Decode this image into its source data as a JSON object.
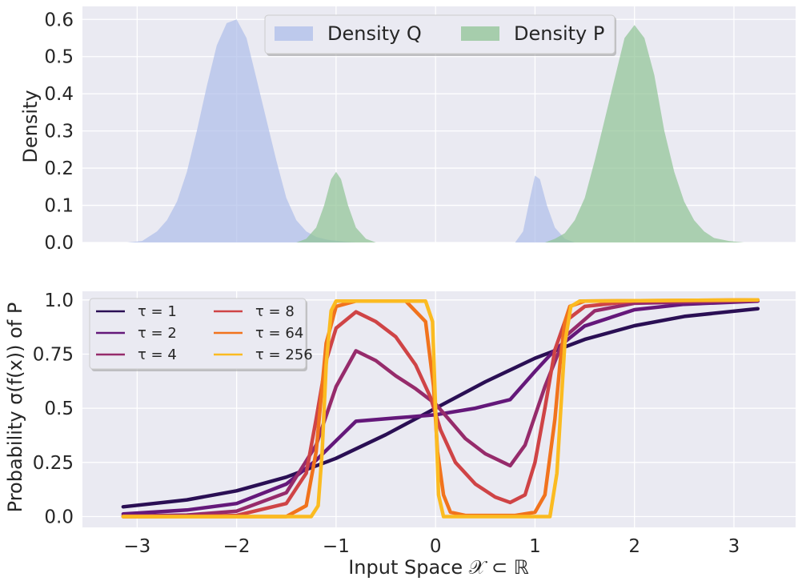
{
  "chart_data": [
    {
      "type": "area",
      "xlabel": "",
      "ylabel": "Density",
      "xlim": [
        -3.55,
        3.62
      ],
      "ylim": [
        0,
        0.635
      ],
      "yticks": [
        0.0,
        0.1,
        0.2,
        0.3,
        0.4,
        0.5,
        0.6
      ],
      "ytick_labels": [
        "0.0",
        "0.1",
        "0.2",
        "0.3",
        "0.4",
        "0.5",
        "0.6"
      ],
      "grid": true,
      "legend_position": "top-center",
      "series": [
        {
          "name": "Density Q",
          "color": "#aebde9",
          "x": [
            -3.1,
            -2.95,
            -2.8,
            -2.7,
            -2.6,
            -2.5,
            -2.4,
            -2.3,
            -2.2,
            -2.1,
            -2.0,
            -1.9,
            -1.8,
            -1.7,
            -1.6,
            -1.5,
            -1.4,
            -1.3,
            -1.2,
            -1.1,
            -1.05,
            -1.0,
            -0.9,
            -0.8,
            0.8,
            0.88,
            0.95,
            1.0,
            1.05,
            1.12,
            1.2,
            1.3,
            1.4
          ],
          "y": [
            0.0,
            0.004,
            0.03,
            0.06,
            0.11,
            0.19,
            0.3,
            0.42,
            0.53,
            0.59,
            0.6,
            0.55,
            0.44,
            0.33,
            0.22,
            0.12,
            0.06,
            0.03,
            0.015,
            0.008,
            0.006,
            0.005,
            0.002,
            0.0,
            0.0,
            0.03,
            0.12,
            0.18,
            0.17,
            0.1,
            0.04,
            0.01,
            0.0
          ]
        },
        {
          "name": "Density P",
          "color": "#8fc394",
          "x": [
            -1.4,
            -1.3,
            -1.2,
            -1.12,
            -1.05,
            -1.0,
            -0.95,
            -0.88,
            -0.8,
            -0.7,
            -0.6,
            1.1,
            1.2,
            1.3,
            1.4,
            1.5,
            1.6,
            1.7,
            1.8,
            1.9,
            2.0,
            2.1,
            2.2,
            2.3,
            2.4,
            2.5,
            2.6,
            2.7,
            2.8,
            2.95,
            3.1
          ],
          "y": [
            0.0,
            0.01,
            0.04,
            0.1,
            0.17,
            0.19,
            0.17,
            0.1,
            0.04,
            0.01,
            0.0,
            0.0,
            0.01,
            0.025,
            0.06,
            0.12,
            0.22,
            0.33,
            0.44,
            0.55,
            0.585,
            0.55,
            0.45,
            0.3,
            0.19,
            0.11,
            0.06,
            0.03,
            0.012,
            0.004,
            0.0
          ]
        }
      ]
    },
    {
      "type": "line",
      "xlabel": "Input Space 𝒳 ⊂ ℝ",
      "ylabel": "Probability σ(f(x)) of P",
      "xlim": [
        -3.55,
        3.62
      ],
      "ylim": [
        -0.05,
        1.04
      ],
      "xticks": [
        -3,
        -2,
        -1,
        0,
        1,
        2,
        3
      ],
      "xtick_labels": [
        "−3",
        "−2",
        "−1",
        "0",
        "1",
        "2",
        "3"
      ],
      "yticks": [
        0.0,
        0.25,
        0.5,
        0.75,
        1.0
      ],
      "ytick_labels": [
        "0.0",
        "0.25",
        "0.5",
        "0.75",
        "1.0"
      ],
      "grid": true,
      "legend_position": "upper-left",
      "series": [
        {
          "name": "τ = 1",
          "color": "#2a0f54",
          "x": [
            -3.14,
            -2.5,
            -2.0,
            -1.5,
            -1.0,
            -0.5,
            0.0,
            0.5,
            1.0,
            1.5,
            2.0,
            2.5,
            3.24
          ],
          "y": [
            0.045,
            0.077,
            0.119,
            0.182,
            0.269,
            0.378,
            0.5,
            0.622,
            0.731,
            0.818,
            0.881,
            0.924,
            0.96
          ]
        },
        {
          "name": "τ = 2",
          "color": "#64187a",
          "x": [
            -3.14,
            -2.5,
            -2.0,
            -1.5,
            -1.2,
            -1.0,
            -0.8,
            -0.4,
            0.0,
            0.4,
            0.75,
            1.0,
            1.2,
            1.5,
            2.0,
            2.5,
            3.24
          ],
          "y": [
            0.012,
            0.03,
            0.06,
            0.15,
            0.26,
            0.35,
            0.44,
            0.455,
            0.47,
            0.5,
            0.54,
            0.67,
            0.77,
            0.88,
            0.955,
            0.98,
            0.995
          ]
        },
        {
          "name": "τ = 4",
          "color": "#962b6b",
          "x": [
            -3.14,
            -2.5,
            -2.0,
            -1.5,
            -1.2,
            -1.0,
            -0.8,
            -0.6,
            -0.4,
            -0.2,
            0.0,
            0.3,
            0.5,
            0.75,
            0.9,
            1.1,
            1.3,
            1.6,
            2.0,
            3.24
          ],
          "y": [
            0.002,
            0.007,
            0.025,
            0.11,
            0.33,
            0.6,
            0.765,
            0.72,
            0.65,
            0.59,
            0.52,
            0.36,
            0.29,
            0.235,
            0.33,
            0.6,
            0.83,
            0.95,
            0.985,
            0.997
          ]
        },
        {
          "name": "τ = 8",
          "color": "#cf4446",
          "x": [
            -3.14,
            -2.5,
            -2.0,
            -1.5,
            -1.3,
            -1.2,
            -1.1,
            -1.0,
            -0.8,
            -0.6,
            -0.4,
            -0.2,
            -0.05,
            0.05,
            0.2,
            0.4,
            0.6,
            0.75,
            0.9,
            1.0,
            1.1,
            1.2,
            1.3,
            1.5,
            2.0,
            3.24
          ],
          "y": [
            0.0,
            0.001,
            0.005,
            0.06,
            0.2,
            0.45,
            0.72,
            0.87,
            0.945,
            0.9,
            0.83,
            0.7,
            0.55,
            0.4,
            0.25,
            0.15,
            0.09,
            0.065,
            0.1,
            0.25,
            0.5,
            0.77,
            0.9,
            0.97,
            0.995,
            1.0
          ]
        },
        {
          "name": "τ = 64",
          "color": "#f1731d",
          "x": [
            -3.14,
            -1.5,
            -1.3,
            -1.2,
            -1.15,
            -1.1,
            -1.0,
            -0.8,
            -0.3,
            -0.1,
            -0.02,
            0.0,
            0.02,
            0.08,
            0.15,
            0.3,
            0.8,
            1.0,
            1.1,
            1.2,
            1.25,
            1.3,
            1.35,
            1.5,
            3.24
          ],
          "y": [
            0.0,
            0.0,
            0.05,
            0.3,
            0.55,
            0.8,
            0.97,
            0.995,
            0.995,
            0.9,
            0.6,
            0.45,
            0.3,
            0.1,
            0.02,
            0.005,
            0.005,
            0.02,
            0.1,
            0.45,
            0.7,
            0.9,
            0.97,
            0.995,
            1.0
          ]
        },
        {
          "name": "τ = 256",
          "color": "#fbbb21",
          "x": [
            -3.14,
            -1.25,
            -1.18,
            -1.14,
            -1.1,
            -1.05,
            -1.0,
            -0.1,
            -0.03,
            0.0,
            0.03,
            0.08,
            1.15,
            1.22,
            1.26,
            1.3,
            1.36,
            1.45,
            3.24
          ],
          "y": [
            0.0,
            0.0,
            0.05,
            0.3,
            0.7,
            0.95,
            0.995,
            0.995,
            0.9,
            0.5,
            0.1,
            0.0,
            0.0,
            0.2,
            0.5,
            0.8,
            0.97,
            0.995,
            1.0
          ]
        }
      ]
    }
  ]
}
